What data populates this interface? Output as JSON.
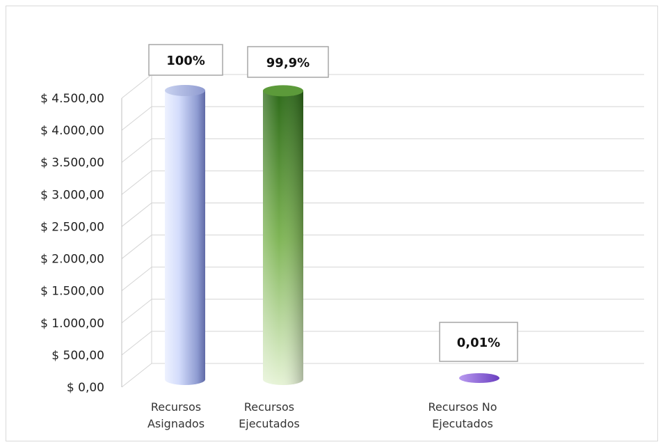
{
  "chart_data": {
    "type": "bar",
    "style": "3d-cylinder",
    "categories": [
      [
        "Recursos",
        "Asignados"
      ],
      [
        "Recursos",
        "Ejecutados"
      ],
      [
        "Recursos No",
        "Ejecutados"
      ]
    ],
    "values": [
      4500,
      4495.5,
      0.45
    ],
    "data_labels": [
      "100%",
      "99,9%",
      "0,01%"
    ],
    "ylim": [
      0,
      4500
    ],
    "y_ticks": [
      "$ 0,00",
      "$ 500,00",
      "$ 1.000,00",
      "$ 1.500,00",
      "$ 2.000,00",
      "$ 2.500,00",
      "$ 3.000,00",
      "$ 3.500,00",
      "$ 4.000,00",
      "$ 4.500,00"
    ],
    "grid": true,
    "legend": "none",
    "colors": [
      "#a9b6e6",
      "#5c9a3a",
      "#8a5fd0"
    ]
  }
}
